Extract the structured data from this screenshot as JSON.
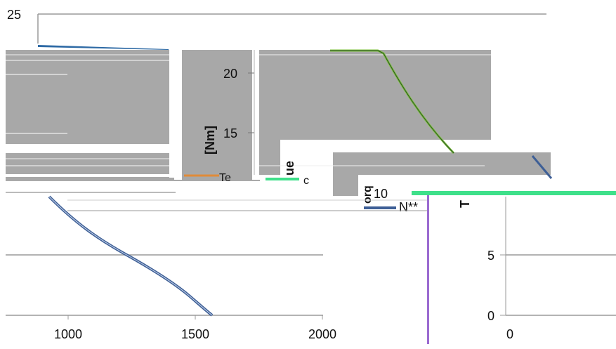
{
  "chart_data": [
    {
      "type": "line",
      "title": "",
      "xlabel": "",
      "ylabel": "",
      "ylim": [
        0,
        25
      ],
      "xlim": [
        750,
        2000
      ],
      "x_ticks": [
        "1000",
        "1500",
        "2000"
      ],
      "y_ticks": [
        "25"
      ],
      "grid": true,
      "series": [
        {
          "name": "",
          "color": "#2e6aa5",
          "x": [
            870,
            1000,
            1200,
            1400,
            1560
          ],
          "y": [
            22.6,
            22.4,
            22.2,
            22.0,
            21.9
          ]
        },
        {
          "name": "",
          "color": "#4a6fa5",
          "x": [
            850,
            1000,
            1200,
            1400,
            1560
          ],
          "y": [
            10.5,
            8.0,
            5.0,
            2.2,
            0.0
          ]
        }
      ]
    },
    {
      "type": "line",
      "title": "",
      "xlabel": "",
      "ylabel": "[Nm]",
      "y_ticks": [
        "20",
        "15",
        "10"
      ],
      "legend_fragments": [
        "Te",
        "c",
        "N**"
      ],
      "series": [
        {
          "name": "",
          "color": "#7cc23b",
          "x": [
            0,
            1,
            2,
            3
          ],
          "y": [
            21.9,
            21.9,
            16.0,
            8.0
          ]
        }
      ]
    },
    {
      "type": "line",
      "title": "",
      "xlabel": "",
      "ylabel": "",
      "y_ticks": [
        "5",
        "0"
      ],
      "x_ticks": [
        "0"
      ],
      "fragments": [
        "ue",
        "orq",
        "T"
      ],
      "series": []
    }
  ]
}
